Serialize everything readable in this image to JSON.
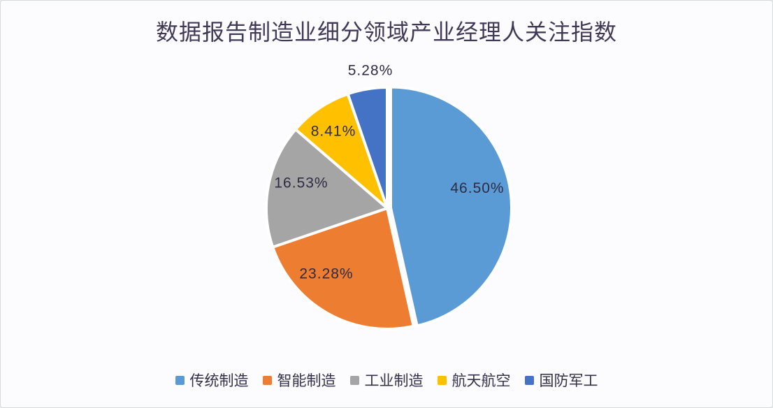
{
  "page": {
    "background": "#fcfcfe",
    "border_color": "#d5dadd"
  },
  "chart_data": {
    "type": "pie",
    "title": "数据报告制造业细分领域产业经理人关注指数",
    "categories": [
      "传统制造",
      "智能制造",
      "工业制造",
      "航天航空",
      "国防军工"
    ],
    "values": [
      46.5,
      23.28,
      16.53,
      8.41,
      5.28
    ],
    "data_labels": [
      "46.50%",
      "23.28%",
      "16.53%",
      "8.41%",
      "5.28%"
    ],
    "colors": [
      "#5B9BD5",
      "#ED7D31",
      "#A5A5A5",
      "#FFC000",
      "#4472C4"
    ],
    "start_angle_deg": 0,
    "direction": "clockwise",
    "legend_position": "bottom",
    "slice_border_color": "#ffffff",
    "label_text_color": "#2f2b44",
    "title_color": "#413a56"
  }
}
